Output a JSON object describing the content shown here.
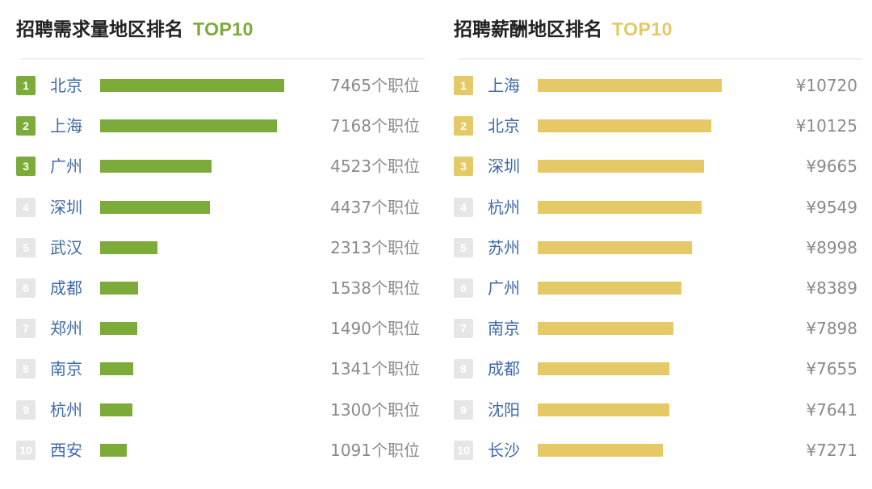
{
  "colors": {
    "left_accent": "#7cab3a",
    "right_accent": "#e5c967",
    "muted_rank": "#e6e6e6"
  },
  "chart_data": [
    {
      "type": "bar",
      "orientation": "horizontal",
      "title": "招聘需求量地区排名",
      "title_tag": "TOP10",
      "categories": [
        "北京",
        "上海",
        "广州",
        "深圳",
        "武汉",
        "成都",
        "郑州",
        "南京",
        "杭州",
        "西安"
      ],
      "values": [
        7465,
        7168,
        4523,
        4437,
        2313,
        1538,
        1490,
        1341,
        1300,
        1091
      ],
      "value_suffix": "个职位",
      "value_labels": [
        "7465个职位",
        "7168个职位",
        "4523个职位",
        "4437个职位",
        "2313个职位",
        "1538个职位",
        "1490个职位",
        "1341个职位",
        "1300个职位",
        "1091个职位"
      ],
      "ranks": [
        "1",
        "2",
        "3",
        "4",
        "5",
        "6",
        "7",
        "8",
        "9",
        "10"
      ],
      "xlim": [
        0,
        7465
      ],
      "grid": false
    },
    {
      "type": "bar",
      "orientation": "horizontal",
      "title": "招聘薪酬地区排名",
      "title_tag": "TOP10",
      "categories": [
        "上海",
        "北京",
        "深圳",
        "杭州",
        "苏州",
        "广州",
        "南京",
        "成都",
        "沈阳",
        "长沙"
      ],
      "values": [
        10720,
        10125,
        9665,
        9549,
        8998,
        8389,
        7898,
        7655,
        7641,
        7271
      ],
      "value_prefix": "¥",
      "value_labels": [
        "¥10720",
        "¥10125",
        "¥9665",
        "¥9549",
        "¥8998",
        "¥8389",
        "¥7898",
        "¥7655",
        "¥7641",
        "¥7271"
      ],
      "ranks": [
        "1",
        "2",
        "3",
        "4",
        "5",
        "6",
        "7",
        "8",
        "9",
        "10"
      ],
      "xlim": [
        0,
        10720
      ],
      "grid": false
    }
  ]
}
